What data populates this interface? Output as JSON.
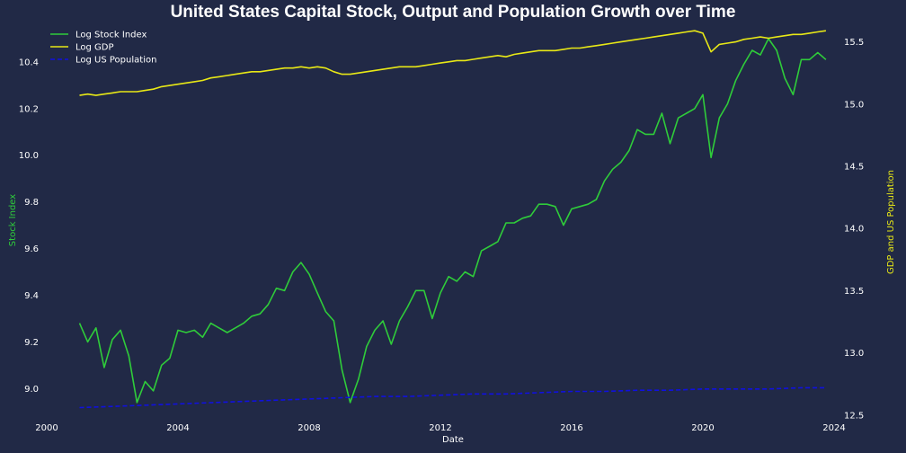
{
  "chart_data": {
    "type": "line",
    "title": "United States Capital Stock, Output and Population Growth over Time",
    "xlabel": "Date",
    "ylabel_left": "Stock Index",
    "ylabel_right": "GDP and US Population",
    "xlim": [
      2000,
      2024
    ],
    "ylim_left": [
      8.87,
      10.55
    ],
    "ylim_right": [
      12.47,
      15.62
    ],
    "x_ticks": [
      2000,
      2004,
      2008,
      2012,
      2016,
      2020,
      2024
    ],
    "y_ticks_left": [
      "9.0",
      "9.2",
      "9.4",
      "9.6",
      "9.8",
      "10.0",
      "10.2",
      "10.4"
    ],
    "y_ticks_right": [
      "12.5",
      "13.0",
      "13.5",
      "14.0",
      "14.5",
      "15.0",
      "15.5"
    ],
    "grid": false,
    "legend_position": "top-left",
    "colors": {
      "background": "#212946",
      "stock": "#2fcc3a",
      "gdp": "#e8e816",
      "population": "#1010e0"
    },
    "series": [
      {
        "name": "Log Stock Index",
        "axis": "left",
        "style": "solid",
        "x": [
          2001.0,
          2001.25,
          2001.5,
          2001.75,
          2002.0,
          2002.25,
          2002.5,
          2002.75,
          2003.0,
          2003.25,
          2003.5,
          2003.75,
          2004.0,
          2004.25,
          2004.5,
          2004.75,
          2005.0,
          2005.25,
          2005.5,
          2005.75,
          2006.0,
          2006.25,
          2006.5,
          2006.75,
          2007.0,
          2007.25,
          2007.5,
          2007.75,
          2008.0,
          2008.25,
          2008.5,
          2008.75,
          2009.0,
          2009.25,
          2009.5,
          2009.75,
          2010.0,
          2010.25,
          2010.5,
          2010.75,
          2011.0,
          2011.25,
          2011.5,
          2011.75,
          2012.0,
          2012.25,
          2012.5,
          2012.75,
          2013.0,
          2013.25,
          2013.5,
          2013.75,
          2014.0,
          2014.25,
          2014.5,
          2014.75,
          2015.0,
          2015.25,
          2015.5,
          2015.75,
          2016.0,
          2016.25,
          2016.5,
          2016.75,
          2017.0,
          2017.25,
          2017.5,
          2017.75,
          2018.0,
          2018.25,
          2018.5,
          2018.75,
          2019.0,
          2019.25,
          2019.5,
          2019.75,
          2020.0,
          2020.25,
          2020.5,
          2020.75,
          2021.0,
          2021.25,
          2021.5,
          2021.75,
          2022.0,
          2022.25,
          2022.5,
          2022.75,
          2023.0,
          2023.25,
          2023.5,
          2023.75
        ],
        "values": [
          9.28,
          9.2,
          9.26,
          9.09,
          9.21,
          9.25,
          9.14,
          8.94,
          9.03,
          8.99,
          9.1,
          9.13,
          9.25,
          9.24,
          9.25,
          9.22,
          9.28,
          9.26,
          9.24,
          9.26,
          9.28,
          9.31,
          9.32,
          9.36,
          9.43,
          9.42,
          9.5,
          9.54,
          9.49,
          9.41,
          9.33,
          9.29,
          9.08,
          8.94,
          9.04,
          9.18,
          9.25,
          9.29,
          9.19,
          9.29,
          9.35,
          9.42,
          9.42,
          9.3,
          9.41,
          9.48,
          9.46,
          9.5,
          9.48,
          9.59,
          9.61,
          9.63,
          9.71,
          9.71,
          9.73,
          9.74,
          9.79,
          9.79,
          9.78,
          9.7,
          9.77,
          9.78,
          9.79,
          9.81,
          9.89,
          9.94,
          9.97,
          10.02,
          10.11,
          10.09,
          10.09,
          10.18,
          10.05,
          10.16,
          10.18,
          10.2,
          10.26,
          9.99,
          10.16,
          10.22,
          10.32,
          10.39,
          10.45,
          10.43,
          10.5,
          10.45,
          10.33,
          10.26,
          10.41,
          10.41,
          10.44,
          10.41
        ]
      },
      {
        "name": "Log GDP",
        "axis": "right",
        "style": "solid",
        "x": [
          2001.0,
          2001.25,
          2001.5,
          2001.75,
          2002.0,
          2002.25,
          2002.5,
          2002.75,
          2003.0,
          2003.25,
          2003.5,
          2003.75,
          2004.0,
          2004.25,
          2004.5,
          2004.75,
          2005.0,
          2005.25,
          2005.5,
          2005.75,
          2006.0,
          2006.25,
          2006.5,
          2006.75,
          2007.0,
          2007.25,
          2007.5,
          2007.75,
          2008.0,
          2008.25,
          2008.5,
          2008.75,
          2009.0,
          2009.25,
          2009.5,
          2009.75,
          2010.0,
          2010.25,
          2010.5,
          2010.75,
          2011.0,
          2011.25,
          2011.5,
          2011.75,
          2012.0,
          2012.25,
          2012.5,
          2012.75,
          2013.0,
          2013.25,
          2013.5,
          2013.75,
          2014.0,
          2014.25,
          2014.5,
          2014.75,
          2015.0,
          2015.25,
          2015.5,
          2015.75,
          2016.0,
          2016.25,
          2016.5,
          2016.75,
          2017.0,
          2017.25,
          2017.5,
          2017.75,
          2018.0,
          2018.25,
          2018.5,
          2018.75,
          2019.0,
          2019.25,
          2019.5,
          2019.75,
          2020.0,
          2020.25,
          2020.5,
          2020.75,
          2021.0,
          2021.25,
          2021.5,
          2021.75,
          2022.0,
          2022.25,
          2022.5,
          2022.75,
          2023.0,
          2023.25,
          2023.5,
          2023.75
        ],
        "values": [
          15.07,
          15.08,
          15.07,
          15.08,
          15.09,
          15.1,
          15.1,
          15.1,
          15.11,
          15.12,
          15.14,
          15.15,
          15.16,
          15.17,
          15.18,
          15.19,
          15.21,
          15.22,
          15.23,
          15.24,
          15.25,
          15.26,
          15.26,
          15.27,
          15.28,
          15.29,
          15.29,
          15.3,
          15.29,
          15.3,
          15.29,
          15.26,
          15.24,
          15.24,
          15.25,
          15.26,
          15.27,
          15.28,
          15.29,
          15.3,
          15.3,
          15.3,
          15.31,
          15.32,
          15.33,
          15.34,
          15.35,
          15.35,
          15.36,
          15.37,
          15.38,
          15.39,
          15.38,
          15.4,
          15.41,
          15.42,
          15.43,
          15.43,
          15.43,
          15.44,
          15.45,
          15.45,
          15.46,
          15.47,
          15.48,
          15.49,
          15.5,
          15.51,
          15.52,
          15.53,
          15.54,
          15.55,
          15.56,
          15.57,
          15.58,
          15.59,
          15.57,
          15.42,
          15.48,
          15.49,
          15.5,
          15.52,
          15.53,
          15.54,
          15.53,
          15.54,
          15.55,
          15.56,
          15.56,
          15.57,
          15.58,
          15.59
        ]
      },
      {
        "name": "Log US Population",
        "axis": "right",
        "style": "dashed",
        "x": [
          2001.0,
          2002.0,
          2003.0,
          2004.0,
          2005.0,
          2006.0,
          2007.0,
          2008.0,
          2009.0,
          2010.0,
          2011.0,
          2012.0,
          2013.0,
          2014.0,
          2015.0,
          2016.0,
          2017.0,
          2018.0,
          2019.0,
          2020.0,
          2021.0,
          2022.0,
          2023.0,
          2023.75
        ],
        "values": [
          12.56,
          12.57,
          12.58,
          12.59,
          12.6,
          12.61,
          12.62,
          12.63,
          12.64,
          12.65,
          12.65,
          12.66,
          12.67,
          12.67,
          12.68,
          12.69,
          12.69,
          12.7,
          12.7,
          12.71,
          12.71,
          12.71,
          12.72,
          12.72
        ]
      }
    ]
  }
}
